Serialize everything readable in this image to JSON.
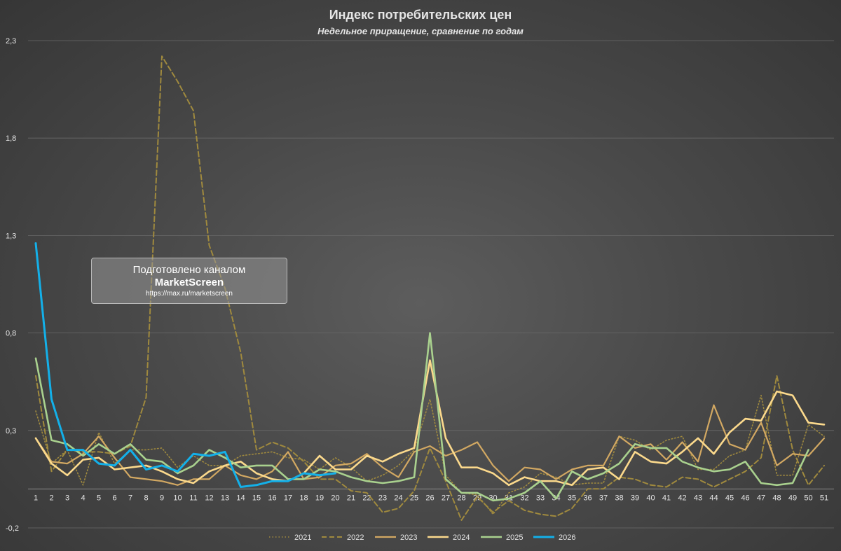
{
  "colors": {
    "s2021": "#a08a3e",
    "s2022": "#a08a3e",
    "s2023": "#d2a862",
    "s2024": "#fbd98c",
    "s2025": "#a9d18e",
    "s2026": "#13b0e9",
    "grid": "#6a6a6a",
    "text": "#e6e6e6"
  },
  "watermark": {
    "line1": "Подготовлено каналом",
    "line2": "MarketScreen",
    "line3": "https://max.ru/marketscreen"
  },
  "chart_data": {
    "type": "line",
    "title": "Индекс потребительских цен",
    "subtitle": "Недельное приращение, сравнение по годам",
    "xlabel": "",
    "ylabel": "",
    "ylim": [
      -0.2,
      2.3
    ],
    "yticks": [
      -0.2,
      0.3,
      0.8,
      1.3,
      1.8,
      2.3
    ],
    "ytick_labels": [
      "-0,2",
      "0,3",
      "0,8",
      "1,3",
      "1,8",
      "2,3"
    ],
    "x_axis_value": 0,
    "grid": true,
    "legend_position": "bottom",
    "x": [
      1,
      2,
      3,
      4,
      5,
      6,
      7,
      8,
      9,
      10,
      11,
      12,
      13,
      14,
      15,
      16,
      17,
      18,
      19,
      20,
      21,
      22,
      23,
      24,
      25,
      26,
      27,
      28,
      29,
      30,
      31,
      32,
      33,
      34,
      35,
      36,
      37,
      38,
      39,
      40,
      41,
      42,
      43,
      44,
      45,
      46,
      47,
      48,
      49,
      50,
      51
    ],
    "series": [
      {
        "name": "2021",
        "style": "dotted",
        "values": [
          0.4,
          0.13,
          0.2,
          0.02,
          0.29,
          0.13,
          0.2,
          0.2,
          0.21,
          0.11,
          0.17,
          0.12,
          0.12,
          0.17,
          0.18,
          0.19,
          0.16,
          0.15,
          0.1,
          0.16,
          0.11,
          0.04,
          0.07,
          0.12,
          0.2,
          0.46,
          0.07,
          -0.02,
          -0.03,
          -0.13,
          -0.02,
          0.01,
          0.08,
          0.06,
          0.02,
          0.03,
          0.03,
          0.27,
          0.25,
          0.2,
          0.25,
          0.27,
          0.1,
          0.1,
          0.17,
          0.2,
          0.48,
          0.07,
          0.07,
          0.33,
          0.27
        ]
      },
      {
        "name": "2022",
        "style": "dashed",
        "values": [
          0.58,
          0.09,
          0.2,
          0.19,
          0.19,
          0.18,
          0.22,
          0.47,
          2.22,
          2.09,
          1.94,
          1.25,
          1.03,
          0.7,
          0.2,
          0.24,
          0.21,
          0.14,
          0.05,
          0.05,
          -0.01,
          -0.02,
          -0.12,
          -0.1,
          -0.01,
          0.21,
          0.04,
          -0.16,
          -0.04,
          -0.12,
          -0.06,
          -0.11,
          -0.13,
          -0.14,
          -0.1,
          0,
          0,
          0.06,
          0.05,
          0.02,
          0.01,
          0.06,
          0.05,
          0.01,
          0.05,
          0.09,
          0.16,
          0.58,
          0.2,
          0.02,
          0.12
        ]
      },
      {
        "name": "2023",
        "style": "solid",
        "values": [
          0.26,
          0.14,
          0.13,
          0.18,
          0.27,
          0.16,
          0.06,
          0.05,
          0.04,
          0.02,
          0.05,
          0.05,
          0.12,
          0.07,
          0.05,
          0.09,
          0.19,
          0.05,
          0.06,
          0.12,
          0.13,
          0.18,
          0.11,
          0.06,
          0.19,
          0.22,
          0.17,
          0.2,
          0.24,
          0.12,
          0.04,
          0.11,
          0.1,
          0.05,
          0.1,
          0.12,
          0.12,
          0.27,
          0.21,
          0.23,
          0.15,
          0.24,
          0.14,
          0.43,
          0.23,
          0.2,
          0.34,
          0.12,
          0.18,
          0.17,
          0.26
        ]
      },
      {
        "name": "2024",
        "style": "solid",
        "values": [
          0.26,
          0.13,
          0.07,
          0.15,
          0.16,
          0.1,
          0.11,
          0.12,
          0.09,
          0.05,
          0.03,
          0.09,
          0.12,
          0.14,
          0.08,
          0.05,
          0.04,
          0.08,
          0.17,
          0.1,
          0.1,
          0.17,
          0.14,
          0.18,
          0.21,
          0.66,
          0.26,
          0.11,
          0.11,
          0.08,
          0.02,
          0.06,
          0.04,
          0.04,
          0.02,
          0.1,
          0.11,
          0.05,
          0.19,
          0.14,
          0.13,
          0.19,
          0.26,
          0.18,
          0.29,
          0.36,
          0.35,
          0.5,
          0.48,
          0.34,
          0.33
        ]
      },
      {
        "name": "2025",
        "style": "solid",
        "values": [
          0.67,
          0.25,
          0.23,
          0.17,
          0.23,
          0.18,
          0.23,
          0.15,
          0.14,
          0.08,
          0.12,
          0.2,
          0.16,
          0.11,
          0.12,
          0.12,
          0.05,
          0.05,
          0.1,
          0.09,
          0.06,
          0.04,
          0.03,
          0.04,
          0.06,
          0.8,
          0.05,
          -0.02,
          -0.02,
          -0.06,
          -0.05,
          -0.02,
          0.04,
          -0.05,
          0.09,
          0.05,
          0.08,
          0.13,
          0.23,
          0.21,
          0.21,
          0.14,
          0.11,
          0.09,
          0.1,
          0.14,
          0.03,
          0.02,
          0.03,
          0.2,
          null
        ]
      },
      {
        "name": "2026",
        "style": "solid",
        "values": [
          1.26,
          0.46,
          0.2,
          0.2,
          0.13,
          0.12,
          0.2,
          0.1,
          0.12,
          0.09,
          0.18,
          0.17,
          0.19,
          0.01,
          0.02,
          0.04,
          0.04,
          0.08,
          0.07,
          0.08,
          null,
          null,
          null,
          null,
          null,
          null,
          null,
          null,
          null,
          null,
          null,
          null,
          null,
          null,
          null,
          null,
          null,
          null,
          null,
          null,
          null,
          null,
          null,
          null,
          null,
          null,
          null,
          null,
          null,
          null,
          null
        ]
      }
    ]
  }
}
